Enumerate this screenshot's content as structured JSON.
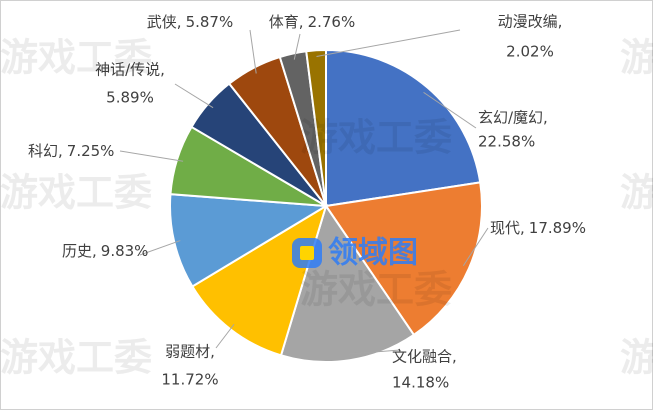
{
  "chart_data": {
    "type": "pie",
    "categories": [
      "玄幻/魔幻,",
      "现代,",
      "文化融合,",
      "弱题材,",
      "历史,",
      "科幻,",
      "神话/传说,",
      "武侠,",
      "体育,",
      "动漫改编,"
    ],
    "values": [
      22.58,
      17.89,
      14.18,
      11.72,
      9.83,
      7.25,
      5.89,
      5.87,
      2.76,
      2.02
    ],
    "value_labels": [
      "22.58%",
      "17.89%",
      "14.18%",
      "11.72%",
      "9.83%",
      "7.25%",
      "5.89%",
      "5.87%",
      "2.76%",
      "2.02%"
    ],
    "colors": [
      "#4472c4",
      "#ed7d31",
      "#a5a5a5",
      "#ffc000",
      "#5b9bd5",
      "#70ad47",
      "#264478",
      "#9e480e",
      "#636363",
      "#997300"
    ]
  },
  "watermark": "游戏工委",
  "logo": "领域图"
}
